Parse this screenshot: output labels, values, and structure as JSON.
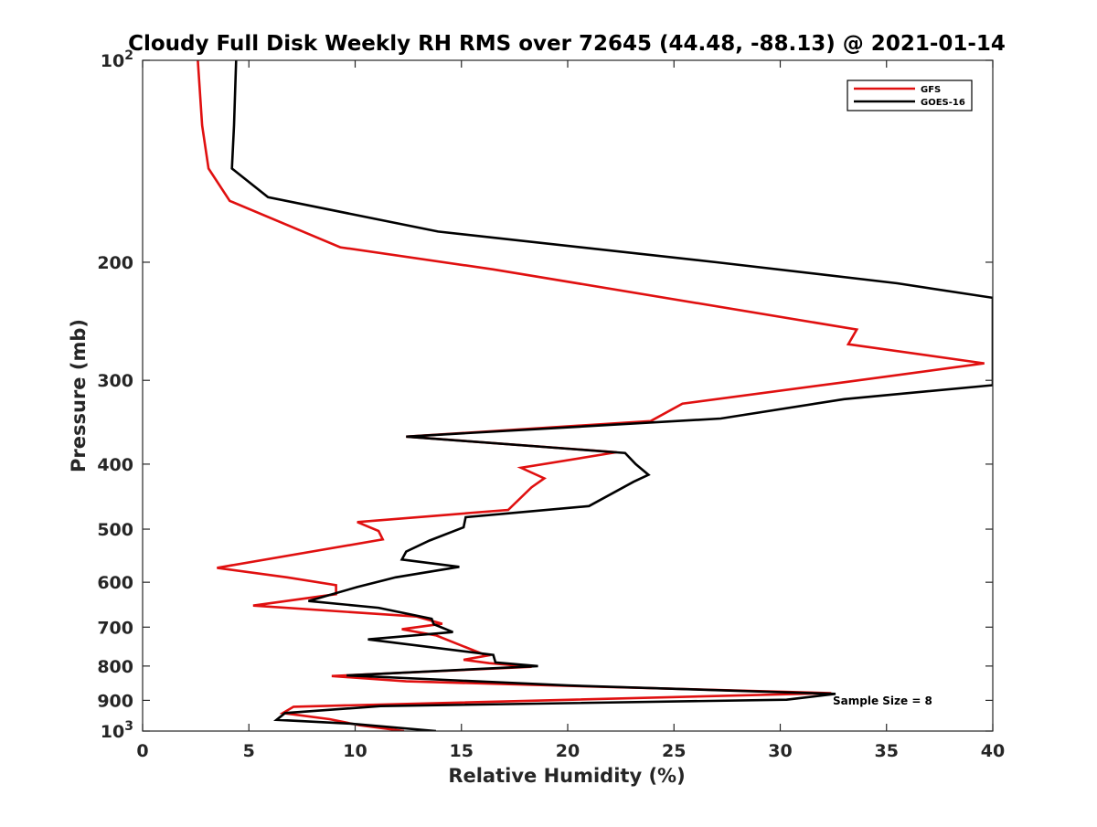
{
  "chart_data": {
    "type": "line",
    "title": "Cloudy Full Disk Weekly RH RMS over 72645 (44.48, -88.13) @ 2021-01-14",
    "xlabel": "Relative Humidity (%)",
    "ylabel": "Pressure (mb)",
    "xlim": [
      0,
      40
    ],
    "ylim": [
      100,
      1000
    ],
    "y_scale": "log",
    "y_reversed": true,
    "grid": false,
    "legend_position": "top-right",
    "x_ticks": [
      "0",
      "5",
      "10",
      "15",
      "20",
      "25",
      "30",
      "35",
      "40"
    ],
    "y_ticks": [
      {
        "value": 100,
        "base": "10",
        "exp": "2"
      },
      {
        "value": 200,
        "label": "200"
      },
      {
        "value": 300,
        "label": "300"
      },
      {
        "value": 400,
        "label": "400"
      },
      {
        "value": 500,
        "label": "500"
      },
      {
        "value": 600,
        "label": "600"
      },
      {
        "value": 700,
        "label": "700"
      },
      {
        "value": 800,
        "label": "800"
      },
      {
        "value": 900,
        "label": "900"
      },
      {
        "value": 1000,
        "base": "10",
        "exp": "3"
      }
    ],
    "annotation": "Sample Size = 8",
    "series": [
      {
        "name": "GFS",
        "color": "#e01010",
        "points": [
          [
            2.6,
            100
          ],
          [
            2.8,
            125
          ],
          [
            3.1,
            145
          ],
          [
            4.1,
            162
          ],
          [
            9.3,
            190
          ],
          [
            16.5,
            205
          ],
          [
            33.6,
            252
          ],
          [
            33.2,
            265
          ],
          [
            39.6,
            283
          ],
          [
            33.0,
            302
          ],
          [
            25.4,
            325
          ],
          [
            23.9,
            345
          ],
          [
            12.4,
            364
          ],
          [
            22.3,
            384
          ],
          [
            17.8,
            405
          ],
          [
            18.9,
            420
          ],
          [
            18.3,
            433
          ],
          [
            17.2,
            468
          ],
          [
            10.1,
            488
          ],
          [
            11.1,
            503
          ],
          [
            11.3,
            518
          ],
          [
            3.5,
            571
          ],
          [
            6.8,
            590
          ],
          [
            9.1,
            606
          ],
          [
            9.1,
            625
          ],
          [
            5.2,
            650
          ],
          [
            12.9,
            675
          ],
          [
            14.1,
            692
          ],
          [
            12.2,
            705
          ],
          [
            13.8,
            720
          ],
          [
            16.2,
            772
          ],
          [
            15.1,
            783
          ],
          [
            16.3,
            792
          ],
          [
            18.3,
            802
          ],
          [
            8.9,
            828
          ],
          [
            12.4,
            843
          ],
          [
            32.4,
            878
          ],
          [
            7.1,
            920
          ],
          [
            6.6,
            940
          ],
          [
            8.8,
            960
          ],
          [
            10.2,
            980
          ],
          [
            12.3,
            1000
          ]
        ]
      },
      {
        "name": "GOES-16",
        "color": "#000000",
        "points": [
          [
            4.4,
            100
          ],
          [
            4.3,
            125
          ],
          [
            4.2,
            145
          ],
          [
            5.9,
            160
          ],
          [
            13.9,
            180
          ],
          [
            27.0,
            200
          ],
          [
            35.5,
            215
          ],
          [
            40.0,
            226
          ],
          [
            40.0,
            232
          ],
          [
            40.0,
            305
          ],
          [
            33.0,
            320
          ],
          [
            27.2,
            342
          ],
          [
            12.4,
            364
          ],
          [
            22.7,
            385
          ],
          [
            23.2,
            400
          ],
          [
            23.8,
            415
          ],
          [
            23.1,
            425
          ],
          [
            21.0,
            462
          ],
          [
            15.2,
            480
          ],
          [
            15.1,
            497
          ],
          [
            13.5,
            520
          ],
          [
            12.4,
            540
          ],
          [
            12.2,
            555
          ],
          [
            14.9,
            569
          ],
          [
            11.9,
            590
          ],
          [
            10.1,
            610
          ],
          [
            7.8,
            640
          ],
          [
            11.1,
            655
          ],
          [
            13.6,
            680
          ],
          [
            13.7,
            693
          ],
          [
            14.6,
            712
          ],
          [
            10.6,
            730
          ],
          [
            16.5,
            770
          ],
          [
            16.6,
            790
          ],
          [
            18.6,
            800
          ],
          [
            9.6,
            826
          ],
          [
            20.0,
            855
          ],
          [
            32.6,
            880
          ],
          [
            30.3,
            898
          ],
          [
            11.2,
            918
          ],
          [
            6.7,
            940
          ],
          [
            6.3,
            962
          ],
          [
            9.8,
            975
          ],
          [
            13.8,
            1000
          ]
        ]
      }
    ]
  }
}
